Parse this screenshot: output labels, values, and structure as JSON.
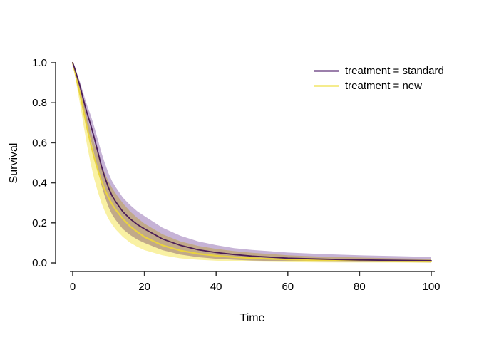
{
  "figure": {
    "xlabel": "Time",
    "ylabel": "Survival",
    "background": "#ffffff",
    "axis_color": "#333333",
    "text_color": "#000000"
  },
  "legend": {
    "position": "top-right",
    "items": [
      {
        "label": "treatment = standard",
        "color": "#9b7fab"
      },
      {
        "label": "treatment = new",
        "color": "#f5ec8d"
      }
    ]
  },
  "chart_data": {
    "type": "line",
    "title": "",
    "xlabel": "Time",
    "ylabel": "Survival",
    "xlim": [
      0,
      100
    ],
    "ylim": [
      0,
      1
    ],
    "grid": false,
    "legend_position": "top-right",
    "xticks": [
      0,
      20,
      40,
      60,
      80,
      100
    ],
    "yticks": [
      0,
      0.2,
      0.4,
      0.6,
      0.8,
      1
    ],
    "xticklabels": [
      "0",
      "20",
      "40",
      "60",
      "80",
      "100"
    ],
    "yticklabels": [
      "0.0",
      "0.2",
      "0.4",
      "0.6",
      "0.8",
      "1.0"
    ],
    "x": [
      0,
      0.5,
      1,
      1.5,
      2,
      2.5,
      3,
      3.5,
      4,
      5,
      6,
      7,
      8,
      9,
      10,
      11,
      12,
      14,
      16,
      18,
      20,
      25,
      30,
      35,
      40,
      45,
      50,
      60,
      70,
      80,
      90,
      100
    ],
    "series": [
      {
        "name": "treatment = standard",
        "line_color": "#4b1d57",
        "band_color": "#c6b3d6",
        "estimate": [
          1,
          0.975,
          0.945,
          0.915,
          0.885,
          0.85,
          0.815,
          0.78,
          0.748,
          0.69,
          0.625,
          0.555,
          0.485,
          0.425,
          0.375,
          0.335,
          0.305,
          0.255,
          0.22,
          0.192,
          0.17,
          0.12,
          0.088,
          0.066,
          0.052,
          0.042,
          0.034,
          0.024,
          0.019,
          0.015,
          0.013,
          0.011
        ],
        "ci_upper": [
          1,
          0.979,
          0.955,
          0.93,
          0.905,
          0.875,
          0.846,
          0.816,
          0.788,
          0.738,
          0.68,
          0.617,
          0.552,
          0.496,
          0.447,
          0.408,
          0.378,
          0.326,
          0.289,
          0.258,
          0.234,
          0.176,
          0.136,
          0.108,
          0.089,
          0.074,
          0.065,
          0.052,
          0.044,
          0.038,
          0.034,
          0.03
        ],
        "ci_lower": [
          1,
          0.968,
          0.929,
          0.891,
          0.853,
          0.81,
          0.766,
          0.724,
          0.686,
          0.617,
          0.543,
          0.465,
          0.39,
          0.329,
          0.279,
          0.241,
          0.214,
          0.169,
          0.14,
          0.117,
          0.1,
          0.064,
          0.042,
          0.029,
          0.021,
          0.016,
          0.012,
          0.008,
          0.006,
          0.005,
          0.004,
          0.003
        ]
      },
      {
        "name": "treatment = new",
        "line_color": "#e9d33f",
        "band_color": "#f9f1a3",
        "estimate": [
          1,
          0.965,
          0.925,
          0.885,
          0.845,
          0.805,
          0.76,
          0.718,
          0.675,
          0.595,
          0.525,
          0.465,
          0.41,
          0.363,
          0.325,
          0.293,
          0.265,
          0.22,
          0.183,
          0.155,
          0.13,
          0.088,
          0.062,
          0.046,
          0.036,
          0.029,
          0.024,
          0.017,
          0.013,
          0.011,
          0.009,
          0.008
        ],
        "ci_upper": [
          1,
          0.972,
          0.94,
          0.907,
          0.874,
          0.841,
          0.803,
          0.767,
          0.73,
          0.66,
          0.597,
          0.542,
          0.49,
          0.445,
          0.407,
          0.374,
          0.346,
          0.298,
          0.257,
          0.225,
          0.196,
          0.143,
          0.108,
          0.085,
          0.07,
          0.059,
          0.051,
          0.038,
          0.031,
          0.027,
          0.023,
          0.021
        ],
        "ci_lower": [
          1,
          0.953,
          0.9,
          0.848,
          0.797,
          0.746,
          0.69,
          0.639,
          0.588,
          0.496,
          0.419,
          0.356,
          0.3,
          0.255,
          0.219,
          0.191,
          0.167,
          0.13,
          0.101,
          0.081,
          0.064,
          0.038,
          0.023,
          0.016,
          0.011,
          0.008,
          0.007,
          0.004,
          0.003,
          0.002,
          0.002,
          0.001
        ]
      }
    ]
  }
}
